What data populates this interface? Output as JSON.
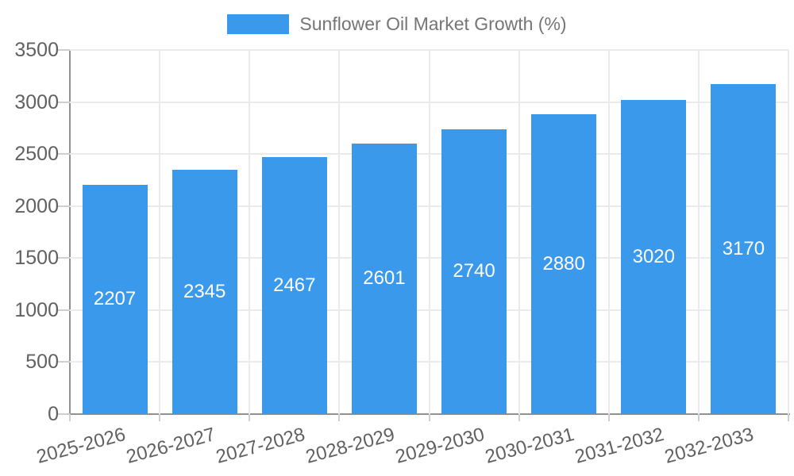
{
  "legend": {
    "label": "Sunflower Oil Market Growth (%)",
    "swatch_color": "#3B99EC",
    "position": "top-center"
  },
  "chart_data": {
    "type": "bar",
    "title": "Sunflower Oil Market Growth (%)",
    "categories": [
      "2025-2026",
      "2026-2027",
      "2027-2028",
      "2028-2029",
      "2029-2030",
      "2030-2031",
      "2031-2032",
      "2032-2033"
    ],
    "values": [
      2207,
      2345,
      2467,
      2601,
      2740,
      2880,
      3020,
      3170
    ],
    "xlabel": "",
    "ylabel": "",
    "ylim": [
      0,
      3500
    ],
    "yticks": [
      0,
      500,
      1000,
      1500,
      2000,
      2500,
      3000,
      3500
    ],
    "grid": "horizontal-and-vertical",
    "legend_position": "top",
    "bar_color": "#3B99EC",
    "value_label_color": "#FFFFFF",
    "x_label_rotation_deg": -15
  },
  "colors": {
    "background": "#FFFFFF",
    "gridline": "#EBEBEB",
    "axis_line": "#919191",
    "tick_mark": "#CFCFCF",
    "axis_label_text": "#616161",
    "legend_text": "#757575"
  }
}
